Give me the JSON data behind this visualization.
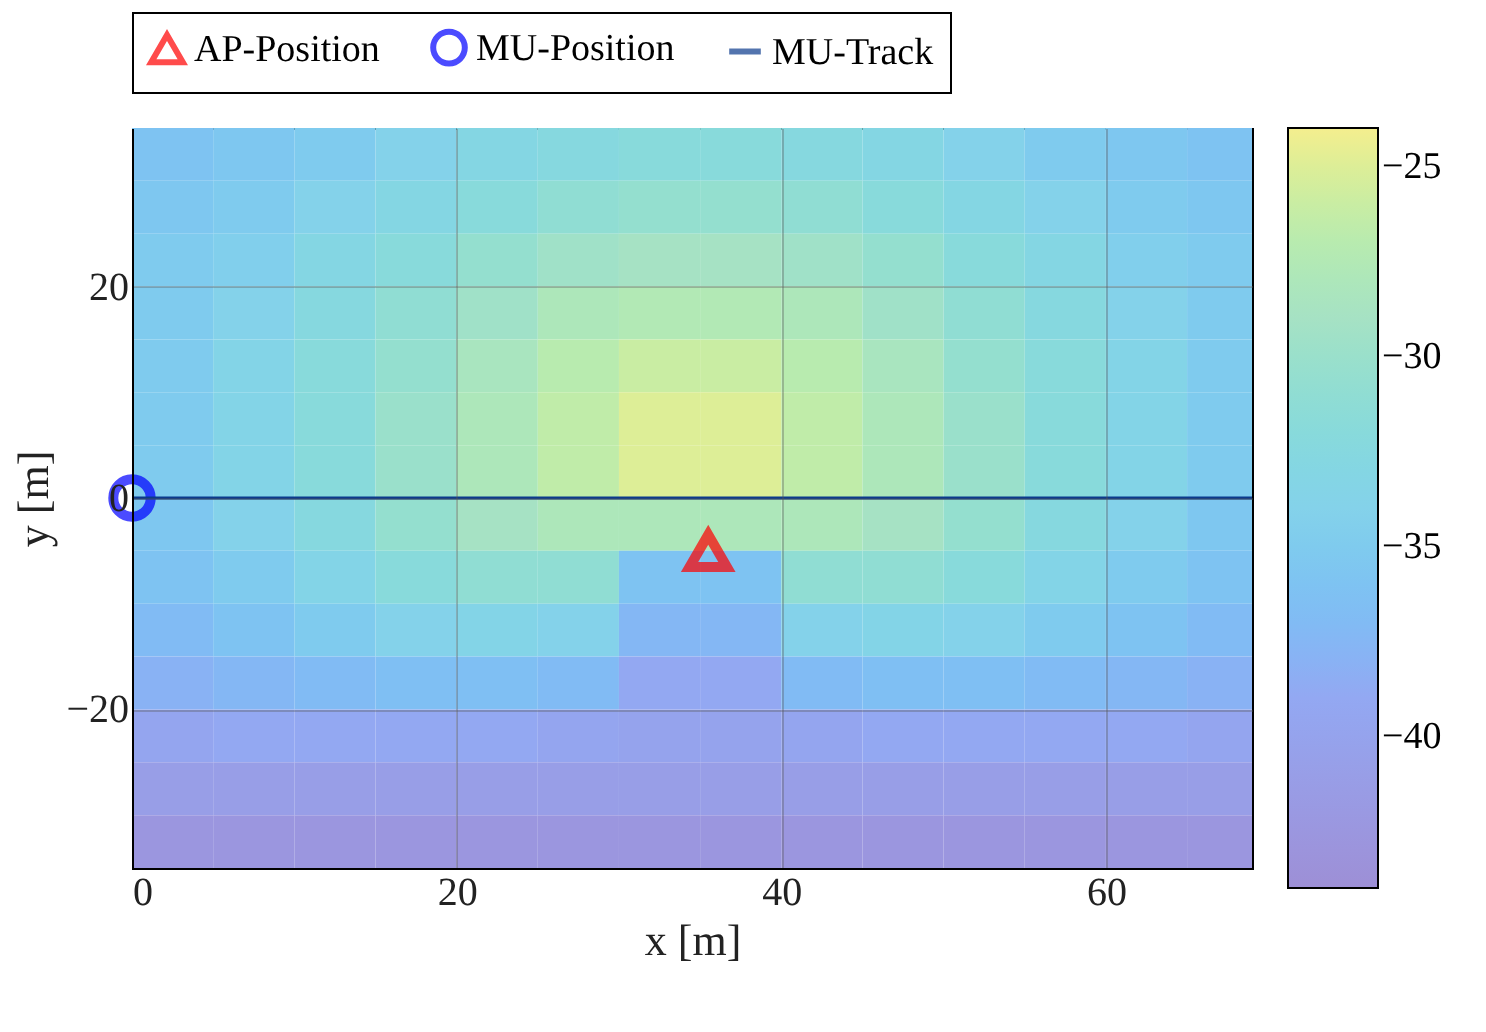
{
  "chart_data": {
    "type": "heatmap",
    "xlabel": "x [m]",
    "ylabel": "y [m]",
    "xlim": [
      0,
      69
    ],
    "ylim": [
      -35,
      35
    ],
    "xticks": [
      0,
      20,
      40,
      60
    ],
    "yticks": [
      -20,
      0,
      20
    ],
    "grid": true,
    "legend": "top",
    "clim": [
      -44,
      -24
    ],
    "cticks": [
      -25,
      -30,
      -35,
      -40
    ],
    "x": [
      2.5,
      7.5,
      12.5,
      17.5,
      22.5,
      27.5,
      32.5,
      37.5,
      42.5,
      47.5,
      52.5,
      57.5,
      62.5,
      67.5
    ],
    "y": [
      32.5,
      27.5,
      22.5,
      17.5,
      12.5,
      7.5,
      2.5,
      -2.5,
      -7.5,
      -12.5,
      -17.5,
      -22.5,
      -27.5,
      -32.5
    ],
    "cells": [
      [
        -36,
        -35.5,
        -35,
        -34,
        -33,
        -32.5,
        -32,
        -32,
        -32.5,
        -33,
        -34,
        -35,
        -35.5,
        -36
      ],
      [
        -35.5,
        -35,
        -34,
        -33,
        -32,
        -31,
        -30.5,
        -30.5,
        -31,
        -32,
        -33,
        -34,
        -35,
        -35.5
      ],
      [
        -35,
        -34.5,
        -33,
        -32,
        -30.5,
        -29.5,
        -29,
        -29,
        -29.5,
        -30.5,
        -32,
        -33,
        -34.5,
        -35
      ],
      [
        -35,
        -34,
        -32.5,
        -31,
        -29.5,
        -28,
        -27.5,
        -27.5,
        -28,
        -29.5,
        -31,
        -32.5,
        -34,
        -35
      ],
      [
        -35,
        -33.5,
        -32,
        -30.5,
        -28.5,
        -27,
        -26,
        -26,
        -27,
        -28.5,
        -30.5,
        -32,
        -33.5,
        -35
      ],
      [
        -35,
        -33.5,
        -32,
        -30,
        -28,
        -26.5,
        -25,
        -25,
        -26.5,
        -28,
        -30,
        -32,
        -33.5,
        -35
      ],
      [
        -35,
        -33.5,
        -32,
        -30,
        -28,
        -26.5,
        -25,
        -25,
        -26.5,
        -28,
        -30,
        -32,
        -33.5,
        -35
      ],
      [
        -35.5,
        -34,
        -32.5,
        -30.5,
        -29,
        -28,
        -28,
        -28,
        -28,
        -29,
        -30.5,
        -32.5,
        -34,
        -35.5
      ],
      [
        -36,
        -35,
        -33.5,
        -32,
        -31,
        -31,
        -36,
        -36,
        -31,
        -31,
        -32,
        -33.5,
        -35,
        -36
      ],
      [
        -37,
        -36,
        -35,
        -34,
        -33.5,
        -34,
        -37.5,
        -37.5,
        -34,
        -33.5,
        -34,
        -35,
        -36,
        -37
      ],
      [
        -38,
        -37.5,
        -37,
        -36.5,
        -36.5,
        -37,
        -39,
        -39,
        -37,
        -36.5,
        -36.5,
        -37,
        -37.5,
        -38
      ],
      [
        -39.5,
        -39,
        -39,
        -39,
        -39,
        -39.5,
        -40,
        -40,
        -39.5,
        -39,
        -39,
        -39,
        -39,
        -39.5
      ],
      [
        -41,
        -41,
        -41,
        -41,
        -41,
        -41,
        -41,
        -41,
        -41,
        -41,
        -41,
        -41,
        -41,
        -41
      ],
      [
        -42.5,
        -42.5,
        -42.5,
        -42.5,
        -42.5,
        -42.5,
        -42.5,
        -42.5,
        -42.5,
        -42.5,
        -42.5,
        -42.5,
        -42.5,
        -42.5
      ]
    ],
    "series": [
      {
        "name": "AP-Position",
        "type": "scatter",
        "marker": "triangle",
        "color": "#ff0000",
        "x": [
          35.5
        ],
        "values": [
          -5
        ]
      },
      {
        "name": "MU-Position",
        "type": "scatter",
        "marker": "circle",
        "color": "#0000ff",
        "x": [
          0
        ],
        "values": [
          0
        ]
      },
      {
        "name": "MU-Track",
        "type": "line",
        "marker": "none",
        "color": "#0b3a8c",
        "x": [
          0,
          69
        ],
        "values": [
          0,
          0
        ]
      }
    ]
  }
}
